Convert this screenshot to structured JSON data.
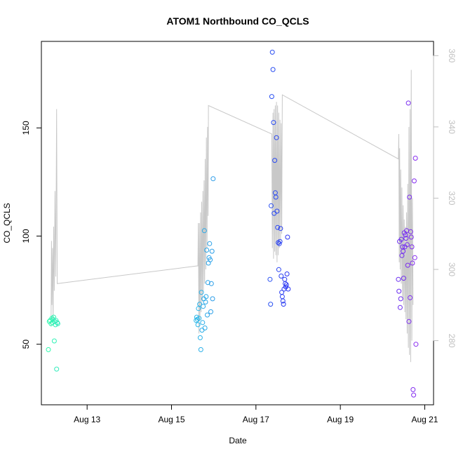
{
  "chart_data": {
    "type": "scatter",
    "title": "ATOM1 Northbound CO_QCLS",
    "xlabel": "Date",
    "ylabel": "CO_QCLS",
    "xlim": [
      "2016-08-11 22:00",
      "2016-08-21 05:00"
    ],
    "ylim": [
      22,
      190
    ],
    "x_ticks": [
      {
        "date": "2016-08-13",
        "label": "Aug 13"
      },
      {
        "date": "2016-08-15",
        "label": "Aug 15"
      },
      {
        "date": "2016-08-17",
        "label": "Aug 17"
      },
      {
        "date": "2016-08-19",
        "label": "Aug 19"
      },
      {
        "date": "2016-08-21",
        "label": "Aug 21"
      }
    ],
    "y_ticks": [
      50,
      100,
      150
    ],
    "y2_ticks": [
      280,
      300,
      320,
      340,
      360
    ],
    "y2lim": [
      262,
      364
    ],
    "grid": false,
    "legend": "none",
    "line_color": "#c8c8c8",
    "line_series_x2": [
      [
        "2016-08-12 03:30",
        284
      ],
      [
        "2016-08-12 03:45",
        308
      ],
      [
        "2016-08-12 04:00",
        290
      ],
      [
        "2016-08-12 04:20",
        306
      ],
      [
        "2016-08-12 04:40",
        285
      ],
      [
        "2016-08-12 05:00",
        312
      ],
      [
        "2016-08-12 05:20",
        294
      ],
      [
        "2016-08-12 05:45",
        322
      ],
      [
        "2016-08-12 06:10",
        298
      ],
      [
        "2016-08-12 06:40",
        345
      ],
      [
        "2016-08-12 07:00",
        296
      ],
      [
        "2016-08-15 15:00",
        301
      ],
      [
        "2016-08-15 15:15",
        313
      ],
      [
        "2016-08-15 15:35",
        282
      ],
      [
        "2016-08-15 15:50",
        313
      ],
      [
        "2016-08-15 16:10",
        286
      ],
      [
        "2016-08-15 16:30",
        316
      ],
      [
        "2016-08-15 16:50",
        288
      ],
      [
        "2016-08-15 17:10",
        319
      ],
      [
        "2016-08-15 17:30",
        291
      ],
      [
        "2016-08-15 17:50",
        322
      ],
      [
        "2016-08-15 18:10",
        294
      ],
      [
        "2016-08-15 18:30",
        325
      ],
      [
        "2016-08-15 18:50",
        296
      ],
      [
        "2016-08-15 19:10",
        331
      ],
      [
        "2016-08-15 19:30",
        300
      ],
      [
        "2016-08-15 19:50",
        337
      ],
      [
        "2016-08-15 20:10",
        306
      ],
      [
        "2016-08-15 20:30",
        340
      ],
      [
        "2016-08-15 20:50",
        315
      ],
      [
        "2016-08-15 21:00",
        346
      ],
      [
        "2016-08-17 09:00",
        338
      ],
      [
        "2016-08-17 09:20",
        306
      ],
      [
        "2016-08-17 09:40",
        344
      ],
      [
        "2016-08-17 10:00",
        303
      ],
      [
        "2016-08-17 10:20",
        345
      ],
      [
        "2016-08-17 10:40",
        305
      ],
      [
        "2016-08-17 11:00",
        346
      ],
      [
        "2016-08-17 11:20",
        304
      ],
      [
        "2016-08-17 11:40",
        347
      ],
      [
        "2016-08-17 12:00",
        302
      ],
      [
        "2016-08-17 12:20",
        346
      ],
      [
        "2016-08-17 12:40",
        304
      ],
      [
        "2016-08-17 13:00",
        344
      ],
      [
        "2016-08-17 13:20",
        306
      ],
      [
        "2016-08-17 13:40",
        342
      ],
      [
        "2016-08-17 14:00",
        308
      ],
      [
        "2016-08-17 14:20",
        341
      ],
      [
        "2016-08-17 14:40",
        310
      ],
      [
        "2016-08-17 15:00",
        349
      ],
      [
        "2016-08-20 09:00",
        331
      ],
      [
        "2016-08-20 09:15",
        338
      ],
      [
        "2016-08-20 09:30",
        302
      ],
      [
        "2016-08-20 09:45",
        334
      ],
      [
        "2016-08-20 10:00",
        300
      ],
      [
        "2016-08-20 10:20",
        328
      ],
      [
        "2016-08-20 10:40",
        296
      ],
      [
        "2016-08-20 11:00",
        323
      ],
      [
        "2016-08-20 11:20",
        292
      ],
      [
        "2016-08-20 11:40",
        318
      ],
      [
        "2016-08-20 12:00",
        290
      ],
      [
        "2016-08-20 12:20",
        314
      ],
      [
        "2016-08-20 12:40",
        288
      ],
      [
        "2016-08-20 13:00",
        312
      ],
      [
        "2016-08-20 13:20",
        286
      ],
      [
        "2016-08-20 13:40",
        316
      ],
      [
        "2016-08-20 14:00",
        282
      ],
      [
        "2016-08-20 14:20",
        324
      ],
      [
        "2016-08-20 14:40",
        278
      ],
      [
        "2016-08-20 15:00",
        340
      ],
      [
        "2016-08-20 15:20",
        276
      ],
      [
        "2016-08-20 15:40",
        345
      ],
      [
        "2016-08-20 16:00",
        274
      ],
      [
        "2016-08-20 16:20",
        356
      ],
      [
        "2016-08-20 16:40",
        280
      ],
      [
        "2016-08-20 17:00",
        320
      ],
      [
        "2016-08-20 17:20",
        290
      ]
    ],
    "points": [
      [
        "2016-08-12 02:00",
        47.5,
        "#2dfaad"
      ],
      [
        "2016-08-12 02:30",
        60.5,
        "#2dfaad"
      ],
      [
        "2016-08-12 03:00",
        61.0,
        "#2ff8b0"
      ],
      [
        "2016-08-12 03:30",
        59.5,
        "#2ff8b0"
      ],
      [
        "2016-08-12 04:00",
        62.0,
        "#2ff6b2"
      ],
      [
        "2016-08-12 04:20",
        60.0,
        "#2ff6b2"
      ],
      [
        "2016-08-12 04:40",
        61.5,
        "#31f4b4"
      ],
      [
        "2016-08-12 05:00",
        62.5,
        "#31f4b4"
      ],
      [
        "2016-08-12 05:20",
        51.5,
        "#31f2b6"
      ],
      [
        "2016-08-12 05:40",
        60.5,
        "#33f0b8"
      ],
      [
        "2016-08-12 06:00",
        59.0,
        "#33f0b8"
      ],
      [
        "2016-08-12 06:20",
        61.0,
        "#33eeba"
      ],
      [
        "2016-08-12 06:40",
        38.5,
        "#35ecbc"
      ],
      [
        "2016-08-12 07:00",
        60.0,
        "#35ecbc"
      ],
      [
        "2016-08-12 07:20",
        59.5,
        "#35eabe"
      ],
      [
        "2016-08-15 14:00",
        61.0,
        "#2bb8e8"
      ],
      [
        "2016-08-15 14:20",
        62.5,
        "#2bb8e8"
      ],
      [
        "2016-08-15 14:40",
        61.5,
        "#2bb6e8"
      ],
      [
        "2016-08-15 15:00",
        59.0,
        "#2bb6e8"
      ],
      [
        "2016-08-15 15:20",
        66.5,
        "#2bb4e8"
      ],
      [
        "2016-08-15 15:40",
        62.0,
        "#2bb4e8"
      ],
      [
        "2016-08-15 16:00",
        68.5,
        "#2bb2e8"
      ],
      [
        "2016-08-15 16:20",
        53.0,
        "#2bb2e8"
      ],
      [
        "2016-08-15 16:40",
        47.5,
        "#2bb0e8"
      ],
      [
        "2016-08-15 17:00",
        74.0,
        "#2bb0e8"
      ],
      [
        "2016-08-15 17:20",
        56.5,
        "#2baee8"
      ],
      [
        "2016-08-15 17:40",
        60.0,
        "#2baee8"
      ],
      [
        "2016-08-15 18:00",
        67.5,
        "#2bace8"
      ],
      [
        "2016-08-15 18:20",
        71.0,
        "#2bace8"
      ],
      [
        "2016-08-15 18:40",
        102.5,
        "#2baae8"
      ],
      [
        "2016-08-15 19:00",
        57.5,
        "#2baae8"
      ],
      [
        "2016-08-15 19:20",
        69.5,
        "#2ba8e8"
      ],
      [
        "2016-08-15 19:40",
        72.0,
        "#2ba8e8"
      ],
      [
        "2016-08-15 20:00",
        93.5,
        "#2ba6e8"
      ],
      [
        "2016-08-15 20:20",
        63.5,
        "#2ba6e8"
      ],
      [
        "2016-08-15 20:40",
        78.5,
        "#2ba4e8"
      ],
      [
        "2016-08-15 21:00",
        87.5,
        "#2ba4e8"
      ],
      [
        "2016-08-15 21:20",
        90.0,
        "#2ba2e8"
      ],
      [
        "2016-08-15 21:40",
        96.5,
        "#2ba2e8"
      ],
      [
        "2016-08-15 22:00",
        89.0,
        "#2ba0e8"
      ],
      [
        "2016-08-15 22:20",
        65.0,
        "#2ba0e8"
      ],
      [
        "2016-08-15 22:40",
        78.0,
        "#2b9ee8"
      ],
      [
        "2016-08-15 23:00",
        93.0,
        "#2b9ee8"
      ],
      [
        "2016-08-15 23:20",
        71.0,
        "#2b9ce8"
      ],
      [
        "2016-08-15 23:40",
        126.5,
        "#2b9ce8"
      ],
      [
        "2016-08-17 08:00",
        80.0,
        "#2a52f2"
      ],
      [
        "2016-08-17 08:20",
        68.5,
        "#2a52f2"
      ],
      [
        "2016-08-17 08:40",
        114.0,
        "#2a50f2"
      ],
      [
        "2016-08-17 09:00",
        164.5,
        "#2a50f2"
      ],
      [
        "2016-08-17 09:20",
        185.0,
        "#2a4ef2"
      ],
      [
        "2016-08-17 09:40",
        177.0,
        "#2a4ef2"
      ],
      [
        "2016-08-17 10:00",
        152.5,
        "#2a4cf2"
      ],
      [
        "2016-08-17 10:20",
        110.5,
        "#2a4cf2"
      ],
      [
        "2016-08-17 10:40",
        135.0,
        "#2a4af2"
      ],
      [
        "2016-08-17 11:00",
        120.0,
        "#2a4af2"
      ],
      [
        "2016-08-17 11:20",
        118.0,
        "#2a48f2"
      ],
      [
        "2016-08-17 11:40",
        145.5,
        "#2a48f2"
      ],
      [
        "2016-08-17 12:00",
        111.5,
        "#2a46f2"
      ],
      [
        "2016-08-17 12:20",
        104.0,
        "#2a46f2"
      ],
      [
        "2016-08-17 12:40",
        97.0,
        "#2a44f2"
      ],
      [
        "2016-08-17 13:00",
        84.5,
        "#2a44f2"
      ],
      [
        "2016-08-17 13:20",
        96.5,
        "#2a42f2"
      ],
      [
        "2016-08-17 13:40",
        97.5,
        "#2a42f2"
      ],
      [
        "2016-08-17 14:00",
        103.5,
        "#2a40f2"
      ],
      [
        "2016-08-17 14:20",
        81.5,
        "#2a40f2"
      ],
      [
        "2016-08-17 14:40",
        74.0,
        "#2a3ef2"
      ],
      [
        "2016-08-17 15:00",
        72.0,
        "#2a3ef2"
      ],
      [
        "2016-08-17 15:20",
        70.0,
        "#2a3cf2"
      ],
      [
        "2016-08-17 15:40",
        68.5,
        "#2a3cf2"
      ],
      [
        "2016-08-17 16:00",
        75.5,
        "#2a3af2"
      ],
      [
        "2016-08-17 16:20",
        80.0,
        "#2a3af2"
      ],
      [
        "2016-08-17 16:40",
        78.0,
        "#2a38f2"
      ],
      [
        "2016-08-17 17:00",
        76.5,
        "#2a38f2"
      ],
      [
        "2016-08-17 17:20",
        77.5,
        "#2a36f2"
      ],
      [
        "2016-08-17 17:40",
        82.5,
        "#2a36f2"
      ],
      [
        "2016-08-17 18:00",
        99.5,
        "#2a34f2"
      ],
      [
        "2016-08-17 18:20",
        75.5,
        "#2a34f2"
      ],
      [
        "2016-08-20 09:00",
        80.0,
        "#6a2cf0"
      ],
      [
        "2016-08-20 09:20",
        74.5,
        "#6a2cf0"
      ],
      [
        "2016-08-20 09:40",
        97.5,
        "#6c2cf0"
      ],
      [
        "2016-08-20 10:00",
        67.0,
        "#6c2cf0"
      ],
      [
        "2016-08-20 10:20",
        71.0,
        "#6e2cf0"
      ],
      [
        "2016-08-20 10:40",
        98.5,
        "#6e2cf0"
      ],
      [
        "2016-08-20 11:00",
        91.0,
        "#702cf0"
      ],
      [
        "2016-08-20 11:20",
        95.0,
        "#702cf0"
      ],
      [
        "2016-08-20 11:40",
        93.0,
        "#722cf0"
      ],
      [
        "2016-08-20 12:00",
        80.5,
        "#722cf0"
      ],
      [
        "2016-08-20 12:20",
        101.5,
        "#742cf0"
      ],
      [
        "2016-08-20 12:40",
        95.0,
        "#742cf0"
      ],
      [
        "2016-08-20 13:00",
        100.5,
        "#762cf0"
      ],
      [
        "2016-08-20 13:20",
        99.0,
        "#762cf0"
      ],
      [
        "2016-08-20 13:40",
        102.5,
        "#782cf0"
      ],
      [
        "2016-08-20 14:00",
        96.0,
        "#782cf0"
      ],
      [
        "2016-08-20 14:20",
        86.5,
        "#7a2cf0"
      ],
      [
        "2016-08-20 14:40",
        161.5,
        "#7a2cf0"
      ],
      [
        "2016-08-20 15:00",
        60.5,
        "#7c2cf0"
      ],
      [
        "2016-08-20 15:20",
        118.0,
        "#7c2cf0"
      ],
      [
        "2016-08-20 15:40",
        71.5,
        "#7e2cf0"
      ],
      [
        "2016-08-20 16:00",
        102.0,
        "#7e2cf0"
      ],
      [
        "2016-08-20 16:20",
        99.5,
        "#802cf0"
      ],
      [
        "2016-08-20 16:40",
        95.0,
        "#802cf0"
      ],
      [
        "2016-08-20 17:00",
        87.5,
        "#822cf0"
      ],
      [
        "2016-08-20 17:20",
        29.0,
        "#822cf0"
      ],
      [
        "2016-08-20 17:40",
        26.5,
        "#842cf0"
      ],
      [
        "2016-08-20 18:00",
        125.5,
        "#842cf0"
      ],
      [
        "2016-08-20 18:20",
        90.0,
        "#862cf0"
      ],
      [
        "2016-08-20 18:40",
        136.0,
        "#862cf0"
      ],
      [
        "2016-08-20 19:00",
        50.0,
        "#882cf0"
      ]
    ]
  }
}
